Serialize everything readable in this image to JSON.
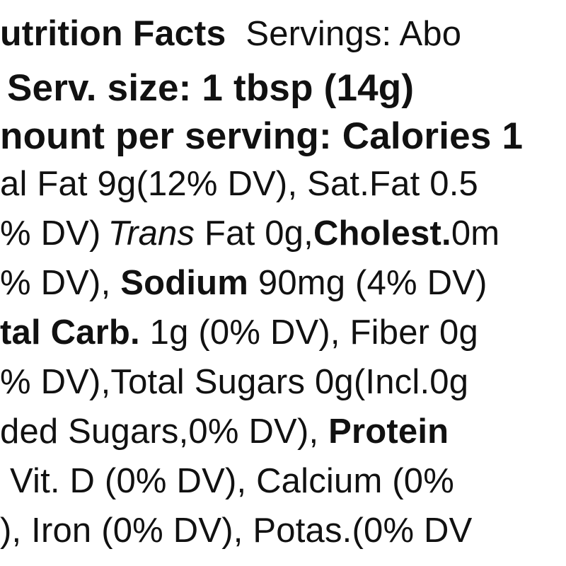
{
  "label": {
    "line1": {
      "title": "utrition Facts",
      "servings": "Servings: Abo"
    },
    "line2": {
      "serving_size": "Serv. size: 1 tbsp (14g)"
    },
    "line3": {
      "amount": "nount per serving: Calories 1"
    },
    "line4": {
      "total_fat": "al Fat 9g(12% DV), Sat.Fat 0.5"
    },
    "line5": {
      "dv": "% DV)",
      "trans": "Trans",
      "trans_fat": " Fat 0g,",
      "cholest_label": "Cholest.",
      "cholest_value": "0m"
    },
    "line6": {
      "dv": "% DV), ",
      "sodium_label": "Sodium",
      "sodium_value": " 90mg (4% DV)"
    },
    "line7": {
      "carb_label": "tal Carb.",
      "carb_value": " 1g (0% DV), Fiber 0g"
    },
    "line8": {
      "text": "% DV),Total Sugars 0g(Incl.0g"
    },
    "line9": {
      "text": "ded Sugars,0% DV), ",
      "protein_label": "Protein"
    },
    "line10": {
      "text": "Vit. D (0% DV), Calcium (0%"
    },
    "line11": {
      "text": "), Iron (0% DV), Potas.(0% DV"
    }
  }
}
